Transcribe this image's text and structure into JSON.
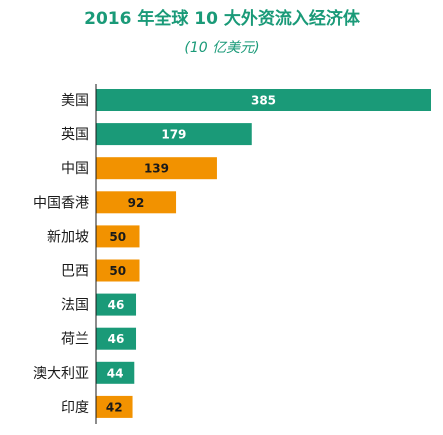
{
  "colors": {
    "title": "#1a9a78",
    "subtitle": "#1a9a78",
    "developed": "#1a9a78",
    "developing": "#f29200",
    "axis": "#1a1a1a",
    "label": "#1a1a1a",
    "value_on_developed": "#ffffff",
    "value_on_developing": "#1a1a1a"
  },
  "chart_data": {
    "type": "bar",
    "orientation": "horizontal",
    "title": "2016 年全球 10 大外资流入经济体",
    "subtitle": "(10 亿美元)",
    "xlabel": "",
    "ylabel": "",
    "xlim": [
      0,
      385
    ],
    "grid": false,
    "legend": "none",
    "categories": [
      "美国",
      "英国",
      "中国",
      "中国香港",
      "新加坡",
      "巴西",
      "法国",
      "荷兰",
      "澳大利亚",
      "印度"
    ],
    "values": [
      385,
      179,
      139,
      92,
      50,
      50,
      46,
      46,
      44,
      42
    ],
    "value_labels": [
      "385",
      "179",
      "139",
      "92",
      "50",
      "50",
      "46",
      "46",
      "44",
      "42"
    ],
    "bar_groups": [
      "developed",
      "developed",
      "developing",
      "developing",
      "developing",
      "developing",
      "developed",
      "developed",
      "developed",
      "developing"
    ]
  }
}
